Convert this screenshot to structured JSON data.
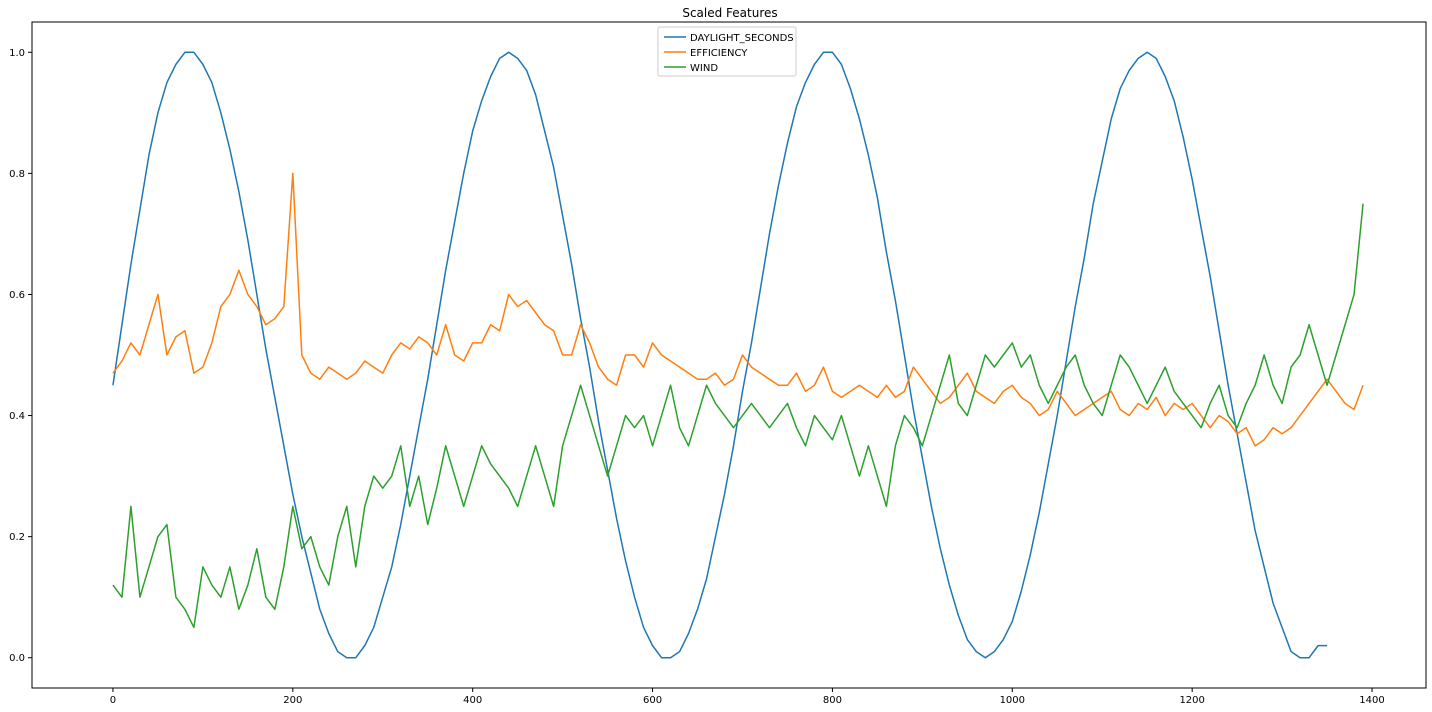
{
  "chart_data": {
    "type": "line",
    "title": "Scaled Features",
    "xlabel": "",
    "ylabel": "",
    "xlim": [
      -90,
      1460
    ],
    "ylim": [
      -0.05,
      1.05
    ],
    "x_ticks": [
      0,
      200,
      400,
      600,
      800,
      1000,
      1200,
      1400
    ],
    "x_tick_labels": [
      "0",
      "200",
      "400",
      "600",
      "800",
      "1000",
      "1200",
      "1400"
    ],
    "y_ticks": [
      0.0,
      0.2,
      0.4,
      0.6,
      0.8,
      1.0
    ],
    "y_tick_labels": [
      "0.0",
      "0.2",
      "0.4",
      "0.6",
      "0.8",
      "1.0"
    ],
    "grid": false,
    "legend_position": "top-center",
    "x_step": 10,
    "series": [
      {
        "name": "DAYLIGHT_SECONDS",
        "color": "#1f77b4",
        "values": [
          0.45,
          0.55,
          0.65,
          0.74,
          0.83,
          0.9,
          0.95,
          0.98,
          1.0,
          1.0,
          0.98,
          0.95,
          0.9,
          0.84,
          0.77,
          0.69,
          0.6,
          0.51,
          0.43,
          0.35,
          0.27,
          0.2,
          0.14,
          0.08,
          0.04,
          0.01,
          0.0,
          0.0,
          0.02,
          0.05,
          0.1,
          0.15,
          0.22,
          0.3,
          0.38,
          0.46,
          0.55,
          0.64,
          0.72,
          0.8,
          0.87,
          0.92,
          0.96,
          0.99,
          1.0,
          0.99,
          0.97,
          0.93,
          0.87,
          0.81,
          0.73,
          0.65,
          0.56,
          0.48,
          0.39,
          0.31,
          0.23,
          0.16,
          0.1,
          0.05,
          0.02,
          0.0,
          0.0,
          0.01,
          0.04,
          0.08,
          0.13,
          0.2,
          0.27,
          0.35,
          0.44,
          0.52,
          0.61,
          0.7,
          0.78,
          0.85,
          0.91,
          0.95,
          0.98,
          1.0,
          1.0,
          0.98,
          0.94,
          0.89,
          0.83,
          0.76,
          0.67,
          0.59,
          0.5,
          0.41,
          0.33,
          0.25,
          0.18,
          0.12,
          0.07,
          0.03,
          0.01,
          0.0,
          0.01,
          0.03,
          0.06,
          0.11,
          0.17,
          0.24,
          0.32,
          0.4,
          0.49,
          0.58,
          0.66,
          0.75,
          0.82,
          0.89,
          0.94,
          0.97,
          0.99,
          1.0,
          0.99,
          0.96,
          0.92,
          0.86,
          0.79,
          0.71,
          0.63,
          0.54,
          0.45,
          0.37,
          0.29,
          0.21,
          0.15,
          0.09,
          0.05,
          0.01,
          0.0,
          0.0,
          0.02,
          0.02
        ]
      },
      {
        "name": "EFFICIENCY",
        "color": "#ff7f0e",
        "values": [
          0.47,
          0.49,
          0.52,
          0.5,
          0.55,
          0.6,
          0.5,
          0.53,
          0.54,
          0.47,
          0.48,
          0.52,
          0.58,
          0.6,
          0.64,
          0.6,
          0.58,
          0.55,
          0.56,
          0.58,
          0.8,
          0.5,
          0.47,
          0.46,
          0.48,
          0.47,
          0.46,
          0.47,
          0.49,
          0.48,
          0.47,
          0.5,
          0.52,
          0.51,
          0.53,
          0.52,
          0.5,
          0.55,
          0.5,
          0.49,
          0.52,
          0.52,
          0.55,
          0.54,
          0.6,
          0.58,
          0.59,
          0.57,
          0.55,
          0.54,
          0.5,
          0.5,
          0.55,
          0.52,
          0.48,
          0.46,
          0.45,
          0.5,
          0.5,
          0.48,
          0.52,
          0.5,
          0.49,
          0.48,
          0.47,
          0.46,
          0.46,
          0.47,
          0.45,
          0.46,
          0.5,
          0.48,
          0.47,
          0.46,
          0.45,
          0.45,
          0.47,
          0.44,
          0.45,
          0.48,
          0.44,
          0.43,
          0.44,
          0.45,
          0.44,
          0.43,
          0.45,
          0.43,
          0.44,
          0.48,
          0.46,
          0.44,
          0.42,
          0.43,
          0.45,
          0.47,
          0.44,
          0.43,
          0.42,
          0.44,
          0.45,
          0.43,
          0.42,
          0.4,
          0.41,
          0.44,
          0.42,
          0.4,
          0.41,
          0.42,
          0.43,
          0.44,
          0.41,
          0.4,
          0.42,
          0.41,
          0.43,
          0.4,
          0.42,
          0.41,
          0.42,
          0.4,
          0.38,
          0.4,
          0.39,
          0.37,
          0.38,
          0.35,
          0.36,
          0.38,
          0.37,
          0.38,
          0.4,
          0.42,
          0.44,
          0.46,
          0.44,
          0.42,
          0.41,
          0.45
        ]
      },
      {
        "name": "WIND",
        "color": "#2ca02c",
        "values": [
          0.12,
          0.1,
          0.25,
          0.1,
          0.15,
          0.2,
          0.22,
          0.1,
          0.08,
          0.05,
          0.15,
          0.12,
          0.1,
          0.15,
          0.08,
          0.12,
          0.18,
          0.1,
          0.08,
          0.15,
          0.25,
          0.18,
          0.2,
          0.15,
          0.12,
          0.2,
          0.25,
          0.15,
          0.25,
          0.3,
          0.28,
          0.3,
          0.35,
          0.25,
          0.3,
          0.22,
          0.28,
          0.35,
          0.3,
          0.25,
          0.3,
          0.35,
          0.32,
          0.3,
          0.28,
          0.25,
          0.3,
          0.35,
          0.3,
          0.25,
          0.35,
          0.4,
          0.45,
          0.4,
          0.35,
          0.3,
          0.35,
          0.4,
          0.38,
          0.4,
          0.35,
          0.4,
          0.45,
          0.38,
          0.35,
          0.4,
          0.45,
          0.42,
          0.4,
          0.38,
          0.4,
          0.42,
          0.4,
          0.38,
          0.4,
          0.42,
          0.38,
          0.35,
          0.4,
          0.38,
          0.36,
          0.4,
          0.35,
          0.3,
          0.35,
          0.3,
          0.25,
          0.35,
          0.4,
          0.38,
          0.35,
          0.4,
          0.45,
          0.5,
          0.42,
          0.4,
          0.45,
          0.5,
          0.48,
          0.5,
          0.52,
          0.48,
          0.5,
          0.45,
          0.42,
          0.45,
          0.48,
          0.5,
          0.45,
          0.42,
          0.4,
          0.45,
          0.5,
          0.48,
          0.45,
          0.42,
          0.45,
          0.48,
          0.44,
          0.42,
          0.4,
          0.38,
          0.42,
          0.45,
          0.4,
          0.38,
          0.42,
          0.45,
          0.5,
          0.45,
          0.42,
          0.48,
          0.5,
          0.55,
          0.5,
          0.45,
          0.5,
          0.55,
          0.6,
          0.75
        ]
      }
    ]
  }
}
